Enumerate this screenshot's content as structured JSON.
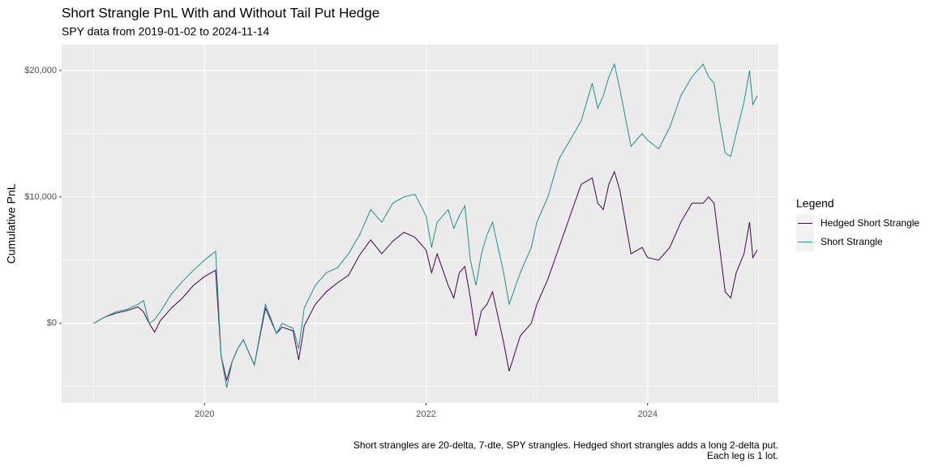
{
  "chart_data": {
    "type": "line",
    "title": "Short Strangle PnL With and Without Tail Put Hedge",
    "subtitle": "SPY data from 2019-01-02 to 2024-11-14",
    "y_label": "Cumulative PnL",
    "caption": [
      "Short strangles are 20-delta, 7-dte, SPY strangles. Hedged short strangles adds a long 2-delta put.",
      "Each leg is 1 lot."
    ],
    "legend_title": "Legend",
    "legend_position": "right",
    "grid": true,
    "x": [
      2019.0,
      2019.1,
      2019.2,
      2019.3,
      2019.4,
      2019.45,
      2019.5,
      2019.55,
      2019.6,
      2019.7,
      2019.8,
      2019.9,
      2020.0,
      2020.1,
      2020.15,
      2020.2,
      2020.25,
      2020.3,
      2020.35,
      2020.45,
      2020.55,
      2020.65,
      2020.7,
      2020.8,
      2020.85,
      2020.9,
      2021.0,
      2021.1,
      2021.2,
      2021.3,
      2021.4,
      2021.5,
      2021.6,
      2021.7,
      2021.8,
      2021.9,
      2022.0,
      2022.05,
      2022.1,
      2022.2,
      2022.25,
      2022.3,
      2022.35,
      2022.4,
      2022.45,
      2022.5,
      2022.55,
      2022.6,
      2022.7,
      2022.75,
      2022.85,
      2022.95,
      2023.0,
      2023.1,
      2023.2,
      2023.3,
      2023.4,
      2023.5,
      2023.55,
      2023.6,
      2023.65,
      2023.7,
      2023.75,
      2023.85,
      2023.95,
      2024.0,
      2024.1,
      2024.2,
      2024.3,
      2024.4,
      2024.5,
      2024.55,
      2024.6,
      2024.65,
      2024.7,
      2024.75,
      2024.8,
      2024.87,
      2024.92,
      2024.95,
      2024.99
    ],
    "series": [
      {
        "name": "Hedged Short Strangle",
        "color": "#440154",
        "values": [
          0,
          500,
          800,
          1000,
          1300,
          900,
          0,
          -700,
          200,
          1200,
          2000,
          3000,
          3700,
          4200,
          -2600,
          -4500,
          -3000,
          -2000,
          -1300,
          -3300,
          1200,
          -800,
          -300,
          -600,
          -2900,
          -200,
          1500,
          2500,
          3200,
          3800,
          5400,
          6600,
          5500,
          6500,
          7200,
          6800,
          5800,
          4000,
          5500,
          3000,
          2000,
          4000,
          4500,
          2000,
          -1000,
          1000,
          1500,
          2500,
          -1500,
          -3800,
          -1000,
          0,
          1500,
          3500,
          6000,
          8500,
          11000,
          11500,
          9500,
          9000,
          11000,
          12000,
          10500,
          5500,
          6000,
          5200,
          5000,
          6000,
          8000,
          9500,
          9500,
          10000,
          9500,
          6000,
          2500,
          2000,
          4000,
          5500,
          8000,
          5200,
          5800
        ]
      },
      {
        "name": "Short Strangle",
        "color": "#21908c",
        "values": [
          0,
          500,
          900,
          1100,
          1500,
          1800,
          0,
          300,
          900,
          2300,
          3300,
          4200,
          5000,
          5700,
          -2600,
          -5100,
          -3000,
          -2000,
          -1300,
          -3300,
          1500,
          -800,
          0,
          -400,
          -2000,
          1200,
          3000,
          4000,
          4400,
          5500,
          7000,
          9000,
          8000,
          9500,
          10000,
          10200,
          8500,
          6000,
          8000,
          9000,
          7500,
          8500,
          9300,
          5000,
          3000,
          5500,
          7000,
          8000,
          4000,
          1500,
          4000,
          6000,
          8000,
          10000,
          13000,
          14500,
          16000,
          19000,
          17000,
          18000,
          19500,
          20500,
          18500,
          14000,
          15000,
          14500,
          13800,
          15500,
          18000,
          19500,
          20500,
          19500,
          19000,
          16000,
          13500,
          13200,
          15000,
          17500,
          20000,
          17300,
          18000
        ]
      }
    ],
    "xlim": [
      2018.71,
      2025.18
    ],
    "xticks": [
      2020,
      2022,
      2024
    ],
    "x_minor_breaks": [
      2019,
      2021,
      2023,
      2025
    ],
    "ylim": [
      -6300,
      22050
    ],
    "yticks": [
      {
        "value": 0,
        "label": "$0"
      },
      {
        "value": 10000,
        "label": "$10,000"
      },
      {
        "value": 20000,
        "label": "$20,000"
      }
    ],
    "y_minor_breaks": [
      -5000,
      5000,
      15000
    ]
  }
}
